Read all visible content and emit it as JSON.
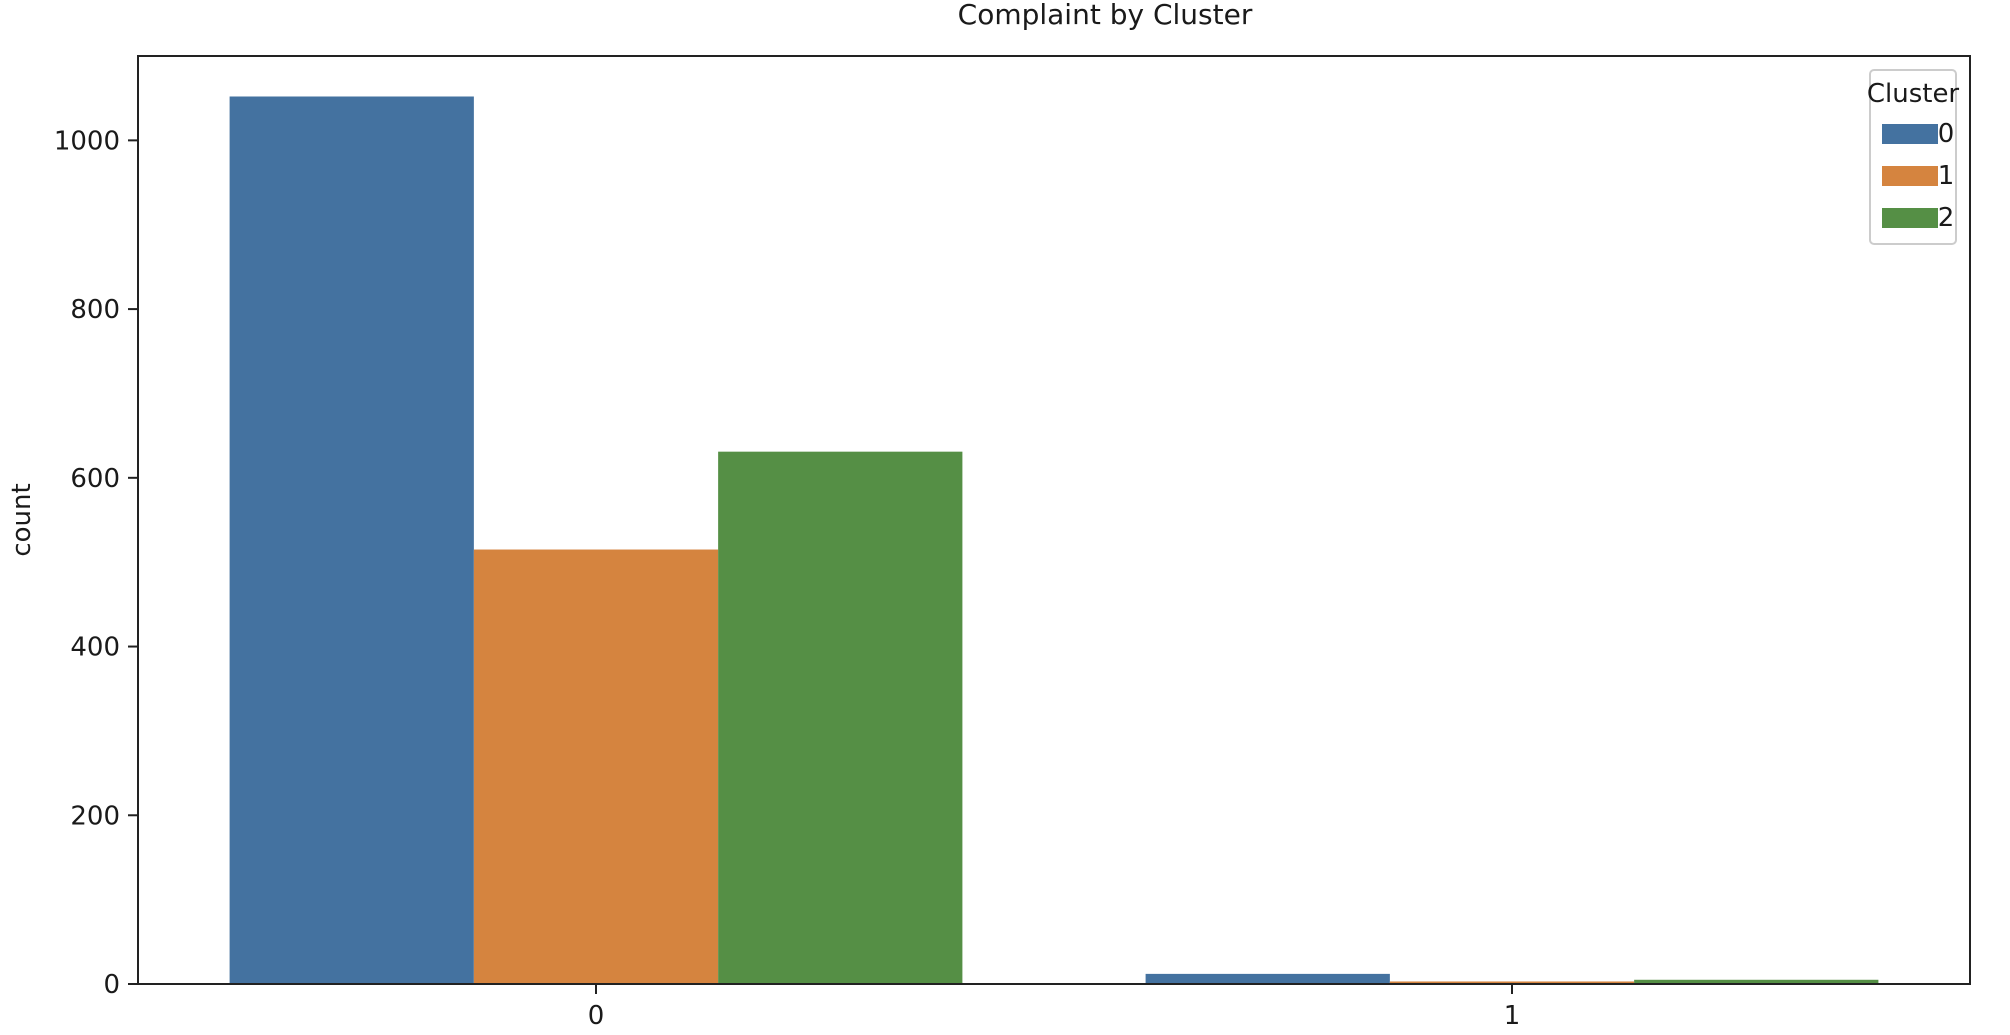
{
  "chart_data": {
    "type": "bar",
    "title": "Complaint by Cluster",
    "xlabel": "",
    "ylabel": "count",
    "categories": [
      "0",
      "1"
    ],
    "ylim": [
      0,
      1100
    ],
    "yticks": [
      0,
      200,
      400,
      600,
      800,
      1000
    ],
    "grid": false,
    "legend": {
      "title": "Cluster",
      "placement": "top-right"
    },
    "series": [
      {
        "name": "0",
        "color": "#4472a0",
        "values": [
          1052,
          12
        ]
      },
      {
        "name": "1",
        "color": "#d5843f",
        "values": [
          515,
          3
        ]
      },
      {
        "name": "2",
        "color": "#558f45",
        "values": [
          631,
          5
        ]
      }
    ]
  }
}
